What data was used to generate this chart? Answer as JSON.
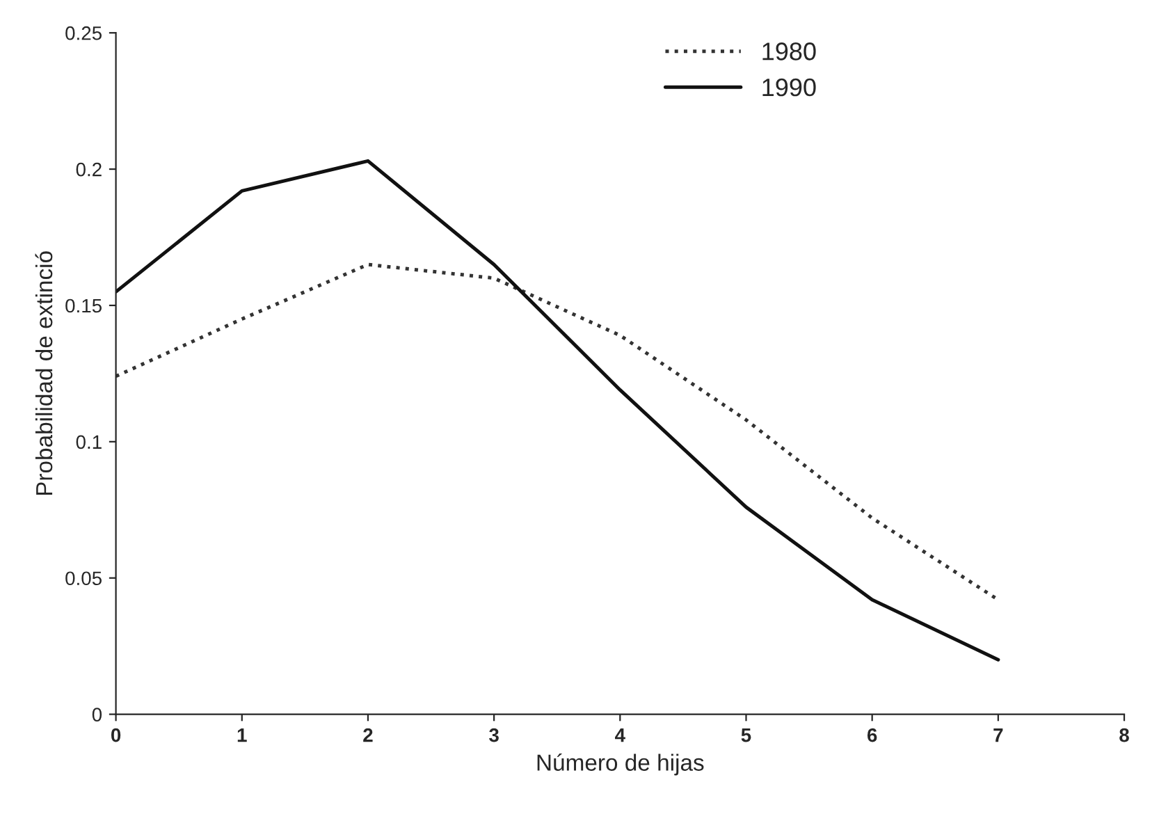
{
  "chart_data": {
    "type": "line",
    "xlabel": "Número de hijas",
    "ylabel": "Probabilidad de extinció",
    "x": [
      0,
      1,
      2,
      3,
      4,
      5,
      6,
      7
    ],
    "series": [
      {
        "name": "1980",
        "color": "#333333",
        "line_style": "dotted",
        "values": [
          0.124,
          0.145,
          0.165,
          0.16,
          0.139,
          0.108,
          0.072,
          0.042
        ]
      },
      {
        "name": "1990",
        "color": "#111111",
        "line_style": "solid",
        "values": [
          0.155,
          0.192,
          0.203,
          0.165,
          0.119,
          0.076,
          0.042,
          0.02
        ]
      }
    ],
    "xlim": [
      0,
      8
    ],
    "xticks": [
      0,
      1,
      2,
      3,
      4,
      5,
      6,
      7,
      8
    ],
    "ylim": [
      0,
      0.25
    ],
    "yticks": [
      0,
      0.05,
      0.1,
      0.15,
      0.2,
      0.25
    ],
    "grid": false,
    "legend": "top",
    "marker": "none"
  }
}
